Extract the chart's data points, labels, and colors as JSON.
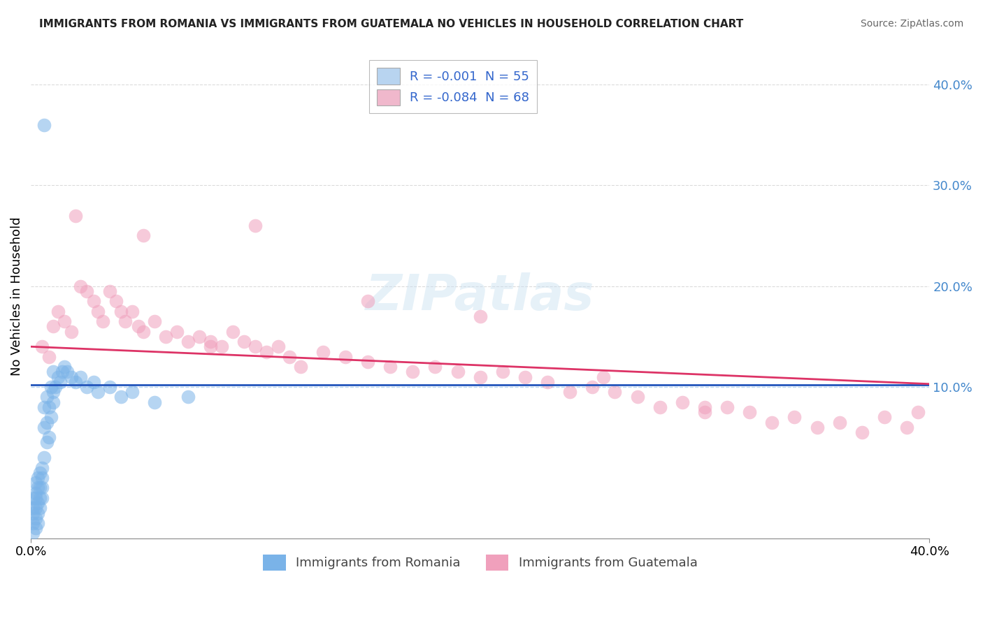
{
  "title": "IMMIGRANTS FROM ROMANIA VS IMMIGRANTS FROM GUATEMALA NO VEHICLES IN HOUSEHOLD CORRELATION CHART",
  "source": "Source: ZipAtlas.com",
  "ylabel": "No Vehicles in Household",
  "y_tick_labels": [
    "10.0%",
    "20.0%",
    "30.0%",
    "40.0%"
  ],
  "y_tick_values": [
    0.1,
    0.2,
    0.3,
    0.4
  ],
  "x_min": 0.0,
  "x_max": 0.4,
  "y_min": -0.05,
  "y_max": 0.43,
  "legend_entries": [
    {
      "label": "R = -0.001  N = 55",
      "color": "#b8d4f0"
    },
    {
      "label": "R = -0.084  N = 68",
      "color": "#f0b8cc"
    }
  ],
  "series1_label": "Immigrants from Romania",
  "series2_label": "Immigrants from Guatemala",
  "series1_color": "#7ab3e8",
  "series2_color": "#f0a0bc",
  "trendline1_color": "#2255bb",
  "trendline2_color": "#dd3366",
  "romania_x": [
    0.001,
    0.001,
    0.001,
    0.001,
    0.001,
    0.002,
    0.002,
    0.002,
    0.002,
    0.002,
    0.002,
    0.003,
    0.003,
    0.003,
    0.003,
    0.003,
    0.004,
    0.004,
    0.004,
    0.004,
    0.005,
    0.005,
    0.005,
    0.005,
    0.006,
    0.006,
    0.006,
    0.007,
    0.007,
    0.007,
    0.008,
    0.008,
    0.009,
    0.009,
    0.01,
    0.01,
    0.01,
    0.011,
    0.012,
    0.013,
    0.014,
    0.015,
    0.016,
    0.018,
    0.02,
    0.022,
    0.025,
    0.028,
    0.03,
    0.035,
    0.04,
    0.045,
    0.055,
    0.07,
    0.006
  ],
  "romania_y": [
    -0.045,
    -0.035,
    -0.025,
    -0.02,
    -0.01,
    -0.04,
    -0.03,
    -0.02,
    -0.01,
    -0.005,
    0.005,
    -0.035,
    -0.025,
    -0.015,
    0.0,
    0.01,
    -0.02,
    -0.01,
    0.0,
    0.015,
    -0.01,
    0.0,
    0.01,
    0.02,
    0.03,
    0.06,
    0.08,
    0.045,
    0.065,
    0.09,
    0.05,
    0.08,
    0.07,
    0.1,
    0.085,
    0.095,
    0.115,
    0.1,
    0.11,
    0.105,
    0.115,
    0.12,
    0.115,
    0.11,
    0.105,
    0.11,
    0.1,
    0.105,
    0.095,
    0.1,
    0.09,
    0.095,
    0.085,
    0.09,
    0.36
  ],
  "guatemala_x": [
    0.005,
    0.008,
    0.01,
    0.012,
    0.015,
    0.018,
    0.02,
    0.022,
    0.025,
    0.028,
    0.03,
    0.032,
    0.035,
    0.038,
    0.04,
    0.042,
    0.045,
    0.048,
    0.05,
    0.055,
    0.06,
    0.065,
    0.07,
    0.075,
    0.08,
    0.085,
    0.09,
    0.095,
    0.1,
    0.105,
    0.11,
    0.115,
    0.12,
    0.13,
    0.14,
    0.15,
    0.16,
    0.17,
    0.18,
    0.19,
    0.2,
    0.21,
    0.22,
    0.23,
    0.24,
    0.25,
    0.255,
    0.26,
    0.27,
    0.28,
    0.29,
    0.3,
    0.31,
    0.32,
    0.33,
    0.34,
    0.35,
    0.36,
    0.37,
    0.38,
    0.39,
    0.395,
    0.1,
    0.2,
    0.15,
    0.08,
    0.05,
    0.3
  ],
  "guatemala_y": [
    0.14,
    0.13,
    0.16,
    0.175,
    0.165,
    0.155,
    0.27,
    0.2,
    0.195,
    0.185,
    0.175,
    0.165,
    0.195,
    0.185,
    0.175,
    0.165,
    0.175,
    0.16,
    0.155,
    0.165,
    0.15,
    0.155,
    0.145,
    0.15,
    0.145,
    0.14,
    0.155,
    0.145,
    0.14,
    0.135,
    0.14,
    0.13,
    0.12,
    0.135,
    0.13,
    0.125,
    0.12,
    0.115,
    0.12,
    0.115,
    0.11,
    0.115,
    0.11,
    0.105,
    0.095,
    0.1,
    0.11,
    0.095,
    0.09,
    0.08,
    0.085,
    0.075,
    0.08,
    0.075,
    0.065,
    0.07,
    0.06,
    0.065,
    0.055,
    0.07,
    0.06,
    0.075,
    0.26,
    0.17,
    0.185,
    0.14,
    0.25,
    0.08
  ],
  "trendline1_y_start": 0.102,
  "trendline1_y_end": 0.102,
  "trendline2_y_start": 0.14,
  "trendline2_y_end": 0.103
}
